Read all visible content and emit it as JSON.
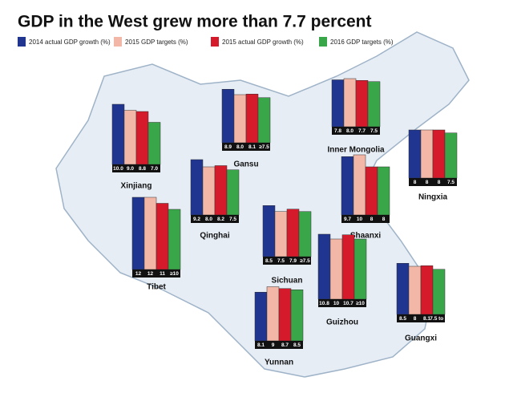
{
  "chart_data": {
    "type": "bar",
    "title": "GDP in the West grew more than 7.7 percent",
    "categories": [
      "Xinjiang",
      "Gansu",
      "Inner Mongolia",
      "Ningxia",
      "Qinghai",
      "Shaanxi",
      "Tibet",
      "Sichuan",
      "Guizhou",
      "Yunnan",
      "Guangxi"
    ],
    "series": [
      {
        "name": "2014 actual GDP growth (%)",
        "color": "#1f3590",
        "values": [
          10.0,
          8.9,
          7.8,
          8,
          9.2,
          9.7,
          12,
          8.5,
          10.8,
          8.1,
          8.5
        ],
        "value_labels": [
          "10.0",
          "8.9",
          "7.8",
          "8",
          "9.2",
          "9.7",
          "12",
          "8.5",
          "10.8",
          "8.1",
          "8.5"
        ]
      },
      {
        "name": "2015 GDP targets (%)",
        "color": "#f3b7a8",
        "values": [
          9.0,
          8.0,
          8.0,
          8,
          8.0,
          10,
          12,
          7.5,
          10,
          9,
          8
        ],
        "value_labels": [
          "9.0",
          "8.0",
          "8.0",
          "8",
          "8.0",
          "10",
          "12",
          "7.5",
          "10",
          "9",
          "8"
        ]
      },
      {
        "name": "2015 actual GDP growth (%)",
        "color": "#d51a2b",
        "values": [
          8.8,
          8.1,
          7.7,
          8,
          8.2,
          8,
          11,
          7.9,
          10.7,
          8.7,
          8.1
        ],
        "value_labels": [
          "8.8",
          "8.1",
          "7.7",
          "8",
          "8.2",
          "8",
          "11",
          "7.9",
          "10.7",
          "8.7",
          "8.1"
        ]
      },
      {
        "name": "2016 GDP targets (%)",
        "color": "#3aa64a",
        "values": [
          7.0,
          7.5,
          7.5,
          7.5,
          7.5,
          8,
          10,
          7.5,
          10,
          8.5,
          7.5
        ],
        "value_labels": [
          "7.0",
          "≥7.5",
          "7.5",
          "7.5",
          "7.5",
          "8",
          "≥10",
          "≥7.5",
          "≥10",
          "8.5",
          "7.5 to 8"
        ]
      }
    ]
  }
}
